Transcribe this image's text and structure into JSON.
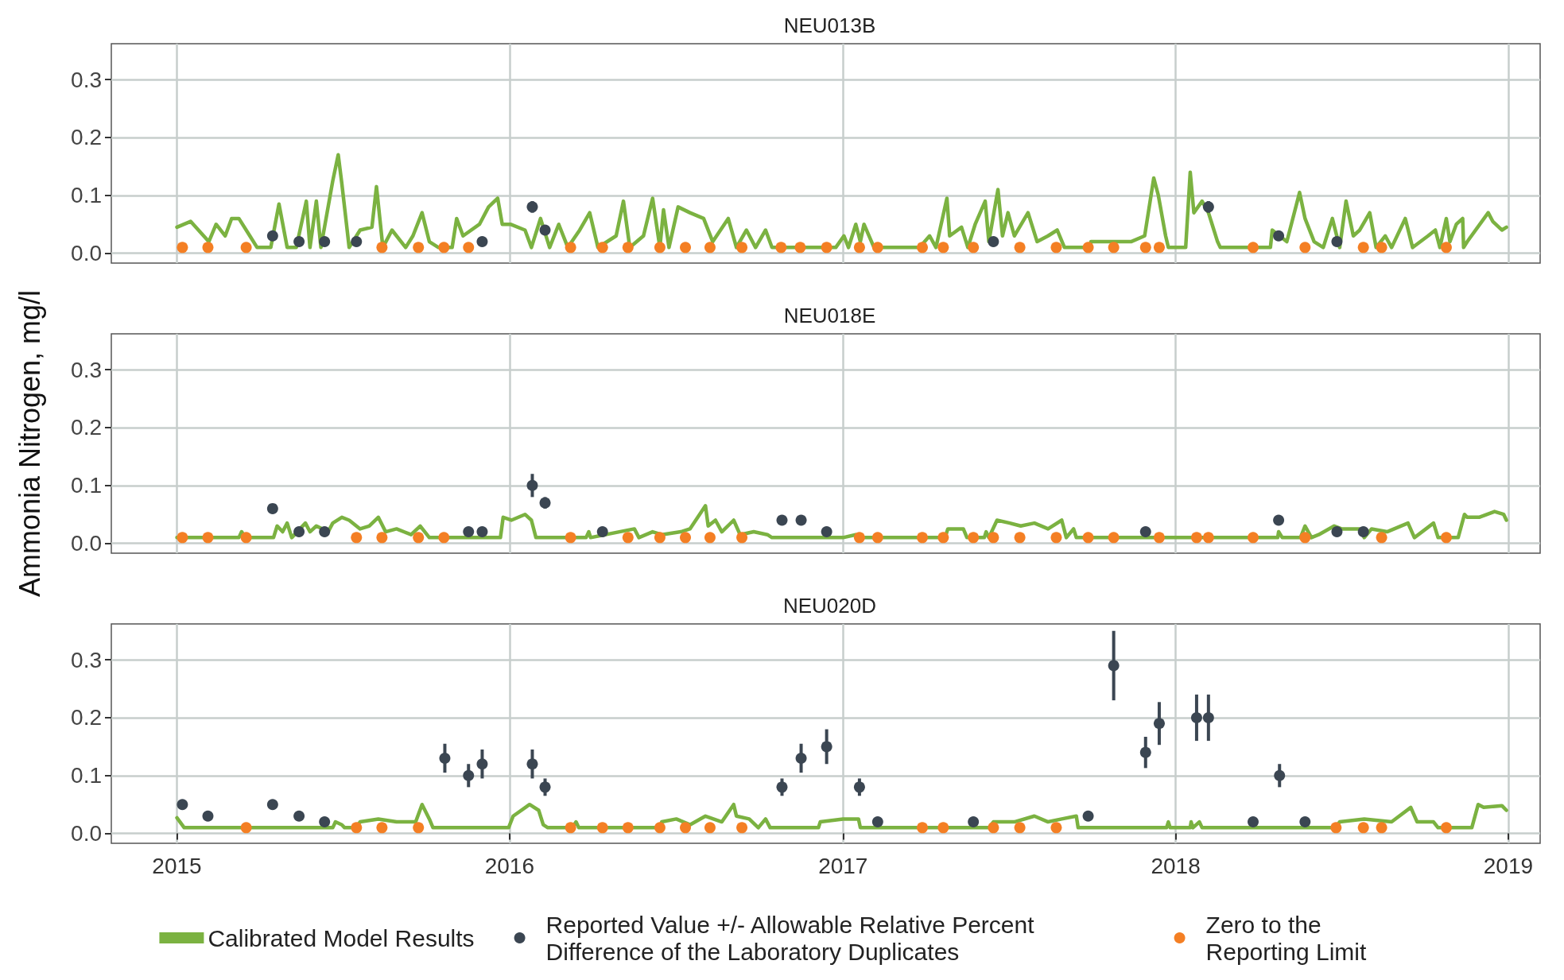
{
  "chart_data": [
    {
      "type": "line",
      "title": "NEU013B",
      "xlim": [
        "2014-10-21",
        "2019-02-05"
      ],
      "xticks": [
        "2015",
        "2016",
        "2017",
        "2018",
        "2019"
      ],
      "ylim": [
        -0.017,
        0.362
      ],
      "yticks": [
        {
          "value": 0,
          "label": "0.0"
        },
        {
          "value": 0.1,
          "label": "0.1"
        },
        {
          "value": 0.2,
          "label": "0.2"
        },
        {
          "value": 0.3,
          "label": "0.3"
        }
      ],
      "grid": true,
      "tick_labels": "y",
      "series": [
        {
          "type": "line",
          "color": "#7bb241",
          "marker": "none",
          "x": [
            "2015-01-01",
            "2015-01-16",
            "2015-02-05",
            "2015-02-13",
            "2015-02-23",
            "2015-03-02",
            "2015-03-10",
            "2015-03-22",
            "2015-03-30",
            "2015-04-14",
            "2015-04-23",
            "2015-05-02",
            "2015-05-12",
            "2015-05-23",
            "2015-05-27",
            "2015-06-03",
            "2015-06-08",
            "2015-06-21",
            "2015-06-27",
            "2015-07-01",
            "2015-07-09",
            "2015-07-21",
            "2015-08-03",
            "2015-08-08",
            "2015-08-15",
            "2015-08-25",
            "2015-09-09",
            "2015-09-17",
            "2015-09-27",
            "2015-10-05",
            "2015-10-15",
            "2015-10-30",
            "2015-11-04",
            "2015-11-11",
            "2015-11-29",
            "2015-12-09",
            "2015-12-19",
            "2015-12-24",
            "2016-01-02",
            "2016-01-18",
            "2016-01-25",
            "2016-02-04",
            "2016-02-14",
            "2016-02-24",
            "2016-03-05",
            "2016-03-18",
            "2016-03-29",
            "2016-04-07",
            "2016-04-27",
            "2016-05-05",
            "2016-05-12",
            "2016-05-27",
            "2016-06-06",
            "2016-06-14",
            "2016-06-18",
            "2016-06-24",
            "2016-07-04",
            "2016-07-17",
            "2016-08-01",
            "2016-08-11",
            "2016-08-28",
            "2016-09-06",
            "2016-09-17",
            "2016-09-27",
            "2016-10-08",
            "2016-10-15",
            "2016-12-24",
            "2017-01-02",
            "2017-01-07",
            "2017-01-15",
            "2017-01-20",
            "2017-01-24",
            "2017-02-04",
            "2017-03-26",
            "2017-04-06",
            "2017-04-13",
            "2017-04-25",
            "2017-04-28",
            "2017-05-11",
            "2017-05-18",
            "2017-05-26",
            "2017-06-06",
            "2017-06-10",
            "2017-06-20",
            "2017-06-25",
            "2017-07-01",
            "2017-07-08",
            "2017-07-23",
            "2017-08-02",
            "2017-08-14",
            "2017-08-24",
            "2017-09-01",
            "2017-09-29",
            "2017-09-30",
            "2017-10-24",
            "2017-11-13",
            "2017-11-28",
            "2017-12-08",
            "2017-12-13",
            "2017-12-21",
            "2017-12-24",
            "2018-01-12",
            "2018-01-17",
            "2018-01-21",
            "2018-01-30",
            "2018-02-06",
            "2018-02-16",
            "2018-02-19",
            "2018-04-15",
            "2018-04-17",
            "2018-05-03",
            "2018-05-17",
            "2018-05-23",
            "2018-06-02",
            "2018-06-12",
            "2018-06-22",
            "2018-06-30",
            "2018-07-07",
            "2018-07-15",
            "2018-07-22",
            "2018-08-02",
            "2018-08-09",
            "2018-08-19",
            "2018-08-26",
            "2018-09-10",
            "2018-09-18",
            "2018-10-05",
            "2018-10-13",
            "2018-10-18",
            "2018-10-25",
            "2018-10-29",
            "2018-11-05",
            "2018-11-12",
            "2018-11-13",
            "2018-11-17",
            "2018-12-10",
            "2018-12-15",
            "2018-12-25",
            "2018-12-30"
          ],
          "values": [
            0.045,
            0.055,
            0.02,
            0.05,
            0.03,
            0.06,
            0.06,
            0.03,
            0.01,
            0.01,
            0.085,
            0.01,
            0.01,
            0.09,
            0.01,
            0.09,
            0.01,
            0.125,
            0.17,
            0.12,
            0.01,
            0.04,
            0.045,
            0.115,
            0.01,
            0.04,
            0.01,
            0.03,
            0.07,
            0.02,
            0.01,
            0.01,
            0.06,
            0.03,
            0.05,
            0.08,
            0.095,
            0.05,
            0.05,
            0.04,
            0.01,
            0.06,
            0.01,
            0.05,
            0.01,
            0.04,
            0.07,
            0.01,
            0.03,
            0.09,
            0.01,
            0.03,
            0.095,
            0.01,
            0.075,
            0.01,
            0.08,
            0.07,
            0.06,
            0.02,
            0.06,
            0.01,
            0.04,
            0.01,
            0.04,
            0.01,
            0.01,
            0.03,
            0.01,
            0.05,
            0.02,
            0.05,
            0.01,
            0.01,
            0.03,
            0.01,
            0.095,
            0.03,
            0.045,
            0.01,
            0.05,
            0.09,
            0.02,
            0.11,
            0.03,
            0.07,
            0.03,
            0.07,
            0.02,
            0.03,
            0.04,
            0.01,
            0.01,
            0.02,
            0.02,
            0.02,
            0.03,
            0.13,
            0.1,
            0.03,
            0.01,
            0.01,
            0.14,
            0.07,
            0.09,
            0.07,
            0.02,
            0.01,
            0.01,
            0.04,
            0.02,
            0.105,
            0.06,
            0.02,
            0.01,
            0.06,
            0.01,
            0.09,
            0.03,
            0.04,
            0.07,
            0.01,
            0.03,
            0.01,
            0.06,
            0.01,
            0.03,
            0.04,
            0.01,
            0.06,
            0.02,
            0.05,
            0.06,
            0.01,
            0.02,
            0.07,
            0.055,
            0.04,
            0.045
          ]
        },
        {
          "type": "scatter",
          "color": "#3b4652",
          "marker": "circle",
          "x": [
            "2015-04-16",
            "2015-05-15",
            "2015-06-12",
            "2015-07-17",
            "2015-12-02",
            "2016-01-26",
            "2016-02-09",
            "2017-06-15",
            "2018-02-06",
            "2018-04-24",
            "2018-06-27"
          ],
          "values": [
            0.03,
            0.02,
            0.02,
            0.02,
            0.02,
            0.08,
            0.04,
            0.02,
            0.08,
            0.03,
            0.02
          ],
          "errors": [
            null,
            null,
            null,
            null,
            null,
            0.01,
            null,
            null,
            0.01,
            null,
            null
          ]
        },
        {
          "type": "scatter",
          "color": "#f47f24",
          "marker": "circle",
          "x": [
            "2015-01-07",
            "2015-02-04",
            "2015-03-18",
            "2015-08-14",
            "2015-09-23",
            "2015-10-21",
            "2015-11-17",
            "2016-03-08",
            "2016-04-12",
            "2016-05-10",
            "2016-06-14",
            "2016-07-12",
            "2016-08-08",
            "2016-09-12",
            "2016-10-25",
            "2016-11-15",
            "2016-12-14",
            "2017-01-19",
            "2017-02-08",
            "2017-03-29",
            "2017-04-21",
            "2017-05-24",
            "2017-07-14",
            "2017-08-23",
            "2017-09-27",
            "2017-10-25",
            "2017-11-29",
            "2017-12-14",
            "2018-03-27",
            "2018-05-23",
            "2018-07-26",
            "2018-08-15",
            "2018-10-25"
          ],
          "values": [
            0.01,
            0.01,
            0.01,
            0.01,
            0.01,
            0.01,
            0.01,
            0.01,
            0.01,
            0.01,
            0.01,
            0.01,
            0.01,
            0.01,
            0.01,
            0.01,
            0.01,
            0.01,
            0.01,
            0.01,
            0.01,
            0.01,
            0.01,
            0.01,
            0.01,
            0.01,
            0.01,
            0.01,
            0.01,
            0.01,
            0.01,
            0.01,
            0.01
          ]
        }
      ]
    },
    {
      "type": "line",
      "title": "NEU018E",
      "ylabel": "Ammonia Nitrogen, mg/l",
      "xlim": [
        "2014-10-21",
        "2019-02-05"
      ],
      "xticks": [
        "2015",
        "2016",
        "2017",
        "2018",
        "2019"
      ],
      "ylim": [
        -0.017,
        0.362
      ],
      "yticks": [
        {
          "value": 0,
          "label": "0.0"
        },
        {
          "value": 0.1,
          "label": "0.1"
        },
        {
          "value": 0.2,
          "label": "0.2"
        },
        {
          "value": 0.3,
          "label": "0.3"
        }
      ],
      "grid": true,
      "tick_labels": "y",
      "series": [
        {
          "type": "line",
          "color": "#7bb241",
          "marker": "none",
          "x": [
            "2015-01-01",
            "2015-03-10",
            "2015-03-13",
            "2015-03-17",
            "2015-04-17",
            "2015-04-21",
            "2015-04-27",
            "2015-05-02",
            "2015-05-07",
            "2015-05-22",
            "2015-05-27",
            "2015-06-03",
            "2015-06-16",
            "2015-06-21",
            "2015-07-01",
            "2015-07-09",
            "2015-07-21",
            "2015-07-31",
            "2015-08-10",
            "2015-08-18",
            "2015-08-30",
            "2015-09-15",
            "2015-09-25",
            "2015-10-05",
            "2015-12-22",
            "2015-12-25",
            "2016-01-03",
            "2016-01-18",
            "2016-01-25",
            "2016-01-30",
            "2016-03-25",
            "2016-03-28",
            "2016-03-30",
            "2016-05-17",
            "2016-05-22",
            "2016-06-06",
            "2016-06-16",
            "2016-07-07",
            "2016-07-17",
            "2016-08-03",
            "2016-08-06",
            "2016-08-14",
            "2016-08-21",
            "2016-09-03",
            "2016-09-10",
            "2016-09-25",
            "2016-10-10",
            "2016-10-15",
            "2017-01-01",
            "2017-01-15",
            "2017-01-20",
            "2017-04-23",
            "2017-04-26",
            "2017-05-13",
            "2017-05-17",
            "2017-06-05",
            "2017-06-07",
            "2017-06-10",
            "2017-06-19",
            "2017-07-03",
            "2017-07-15",
            "2017-07-30",
            "2017-08-14",
            "2017-08-29",
            "2017-09-03",
            "2017-09-11",
            "2017-09-14",
            "2018-04-23",
            "2018-04-24",
            "2018-04-28",
            "2018-05-18",
            "2018-05-23",
            "2018-05-30",
            "2018-06-07",
            "2018-06-24",
            "2018-07-02",
            "2018-07-22",
            "2018-07-27",
            "2018-08-04",
            "2018-08-21",
            "2018-09-13",
            "2018-09-20",
            "2018-10-11",
            "2018-10-16",
            "2018-11-07",
            "2018-11-14",
            "2018-11-17",
            "2018-11-30",
            "2018-12-17",
            "2018-12-27",
            "2018-12-30"
          ],
          "values": [
            0.01,
            0.01,
            0.02,
            0.01,
            0.01,
            0.03,
            0.02,
            0.035,
            0.01,
            0.035,
            0.02,
            0.03,
            0.02,
            0.035,
            0.045,
            0.04,
            0.025,
            0.03,
            0.045,
            0.02,
            0.025,
            0.015,
            0.03,
            0.01,
            0.01,
            0.045,
            0.04,
            0.05,
            0.04,
            0.01,
            0.01,
            0.02,
            0.01,
            0.025,
            0.01,
            0.02,
            0.015,
            0.02,
            0.025,
            0.065,
            0.03,
            0.04,
            0.02,
            0.04,
            0.015,
            0.02,
            0.015,
            0.01,
            0.01,
            0.015,
            0.01,
            0.01,
            0.025,
            0.025,
            0.01,
            0.01,
            0.02,
            0.01,
            0.04,
            0.035,
            0.03,
            0.035,
            0.025,
            0.04,
            0.01,
            0.025,
            0.01,
            0.01,
            0.02,
            0.01,
            0.01,
            0.03,
            0.01,
            0.015,
            0.03,
            0.025,
            0.025,
            0.01,
            0.025,
            0.02,
            0.035,
            0.01,
            0.035,
            0.01,
            0.01,
            0.05,
            0.045,
            0.045,
            0.055,
            0.05,
            0.04
          ]
        },
        {
          "type": "scatter",
          "color": "#3b4652",
          "marker": "circle",
          "x": [
            "2015-04-16",
            "2015-05-15",
            "2015-06-12",
            "2015-11-17",
            "2015-12-02",
            "2016-01-26",
            "2016-02-09",
            "2016-04-12",
            "2016-10-26",
            "2016-11-16",
            "2016-12-14",
            "2017-11-29",
            "2018-04-24",
            "2018-06-27",
            "2018-07-26"
          ],
          "values": [
            0.06,
            0.02,
            0.02,
            0.02,
            0.02,
            0.1,
            0.07,
            0.02,
            0.04,
            0.04,
            0.02,
            0.02,
            0.04,
            0.02,
            0.02
          ],
          "errors": [
            null,
            null,
            null,
            null,
            null,
            0.02,
            0.01,
            null,
            null,
            null,
            null,
            null,
            null,
            null,
            null
          ]
        },
        {
          "type": "scatter",
          "color": "#f47f24",
          "marker": "circle",
          "x": [
            "2015-01-07",
            "2015-02-04",
            "2015-03-18",
            "2015-07-17",
            "2015-08-14",
            "2015-09-23",
            "2015-10-21",
            "2016-03-08",
            "2016-05-10",
            "2016-06-14",
            "2016-07-12",
            "2016-08-08",
            "2016-09-12",
            "2017-01-19",
            "2017-02-08",
            "2017-03-29",
            "2017-04-21",
            "2017-05-24",
            "2017-06-15",
            "2017-07-14",
            "2017-08-23",
            "2017-09-27",
            "2017-10-25",
            "2017-12-14",
            "2018-01-24",
            "2018-02-06",
            "2018-03-27",
            "2018-05-23",
            "2018-08-15",
            "2018-10-25"
          ],
          "values": [
            0.01,
            0.01,
            0.01,
            0.01,
            0.01,
            0.01,
            0.01,
            0.01,
            0.01,
            0.01,
            0.01,
            0.01,
            0.01,
            0.01,
            0.01,
            0.01,
            0.01,
            0.01,
            0.01,
            0.01,
            0.01,
            0.01,
            0.01,
            0.01,
            0.01,
            0.01,
            0.01,
            0.01,
            0.01,
            0.01
          ]
        }
      ]
    },
    {
      "type": "line",
      "title": "NEU020D",
      "xlim": [
        "2014-10-21",
        "2019-02-05"
      ],
      "xticks": [
        "2015",
        "2016",
        "2017",
        "2018",
        "2019"
      ],
      "ylim": [
        -0.017,
        0.362
      ],
      "yticks": [
        {
          "value": 0,
          "label": "0.0"
        },
        {
          "value": 0.1,
          "label": "0.1"
        },
        {
          "value": 0.2,
          "label": "0.2"
        },
        {
          "value": 0.3,
          "label": "0.3"
        }
      ],
      "grid": true,
      "legend": "bottom",
      "series": [
        {
          "type": "line",
          "name": "Calibrated Model Results",
          "color": "#7bb241",
          "marker": "none",
          "x": [
            "2015-01-01",
            "2015-01-09",
            "2015-06-21",
            "2015-06-24",
            "2015-07-01",
            "2015-07-04",
            "2015-07-16",
            "2015-07-21",
            "2015-08-10",
            "2015-08-30",
            "2015-09-20",
            "2015-09-27",
            "2015-10-05",
            "2015-10-09",
            "2015-12-31",
            "2016-01-05",
            "2016-01-23",
            "2016-02-02",
            "2016-02-07",
            "2016-02-12",
            "2016-03-10",
            "2016-03-14",
            "2016-03-17",
            "2016-06-14",
            "2016-06-16",
            "2016-07-02",
            "2016-07-17",
            "2016-08-03",
            "2016-08-21",
            "2016-09-03",
            "2016-09-06",
            "2016-09-20",
            "2016-09-30",
            "2016-10-08",
            "2016-10-13",
            "2016-12-05",
            "2016-12-07",
            "2017-01-01",
            "2017-01-18",
            "2017-01-20",
            "2017-06-10",
            "2017-06-15",
            "2017-07-08",
            "2017-07-30",
            "2017-08-14",
            "2017-08-29",
            "2017-09-14",
            "2017-09-16",
            "2017-12-22",
            "2017-12-24",
            "2017-12-26",
            "2018-01-17",
            "2018-01-18",
            "2018-01-20",
            "2018-01-27",
            "2018-01-30",
            "2018-06-25",
            "2018-06-30",
            "2018-07-27",
            "2018-08-26",
            "2018-09-16",
            "2018-09-23",
            "2018-10-11",
            "2018-10-16",
            "2018-11-22",
            "2018-11-29",
            "2018-12-05",
            "2018-12-25",
            "2018-12-30"
          ],
          "values": [
            0.027,
            0.01,
            0.01,
            0.02,
            0.015,
            0.01,
            0.01,
            0.02,
            0.025,
            0.02,
            0.02,
            0.05,
            0.025,
            0.01,
            0.01,
            0.03,
            0.05,
            0.04,
            0.015,
            0.01,
            0.01,
            0.02,
            0.01,
            0.01,
            0.02,
            0.025,
            0.015,
            0.03,
            0.02,
            0.05,
            0.03,
            0.025,
            0.01,
            0.025,
            0.01,
            0.01,
            0.02,
            0.025,
            0.025,
            0.01,
            0.01,
            0.02,
            0.02,
            0.03,
            0.02,
            0.025,
            0.03,
            0.01,
            0.01,
            0.02,
            0.01,
            0.01,
            0.02,
            0.01,
            0.02,
            0.01,
            0.01,
            0.02,
            0.025,
            0.02,
            0.045,
            0.02,
            0.02,
            0.01,
            0.01,
            0.05,
            0.045,
            0.048,
            0.04
          ]
        },
        {
          "type": "scatter",
          "name": "Reported Value +/- Allowable Relative Percent Difference of the Laboratory Duplicates",
          "color": "#3b4652",
          "marker": "circle",
          "x": [
            "2015-01-07",
            "2015-02-04",
            "2015-04-16",
            "2015-05-15",
            "2015-06-12",
            "2015-10-22",
            "2015-11-17",
            "2015-12-02",
            "2016-01-26",
            "2016-02-09",
            "2016-10-26",
            "2016-11-16",
            "2016-12-14",
            "2017-01-19",
            "2017-02-08",
            "2017-05-24",
            "2017-09-27",
            "2017-10-25",
            "2017-11-29",
            "2017-12-14",
            "2018-01-24",
            "2018-02-06",
            "2018-03-27",
            "2018-04-25",
            "2018-05-23"
          ],
          "values": [
            0.05,
            0.03,
            0.05,
            0.03,
            0.02,
            0.13,
            0.1,
            0.12,
            0.12,
            0.08,
            0.08,
            0.13,
            0.15,
            0.08,
            0.02,
            0.02,
            0.03,
            0.29,
            0.14,
            0.19,
            0.2,
            0.2,
            0.02,
            0.1,
            0.02
          ],
          "errors": [
            null,
            null,
            null,
            null,
            null,
            0.025,
            0.02,
            0.025,
            0.025,
            0.015,
            0.015,
            0.025,
            0.03,
            0.015,
            null,
            null,
            null,
            0.06,
            0.027,
            0.037,
            0.04,
            0.04,
            null,
            0.02,
            null
          ]
        },
        {
          "type": "scatter",
          "name": "Zero to the Reporting Limit",
          "color": "#f47f24",
          "marker": "circle",
          "x": [
            "2015-03-18",
            "2015-07-17",
            "2015-08-14",
            "2015-09-23",
            "2016-03-08",
            "2016-04-12",
            "2016-05-10",
            "2016-06-14",
            "2016-07-12",
            "2016-08-08",
            "2016-09-12",
            "2017-03-29",
            "2017-04-21",
            "2017-06-15",
            "2017-07-14",
            "2017-08-23",
            "2018-06-26",
            "2018-07-26",
            "2018-08-15",
            "2018-10-25"
          ],
          "values": [
            0.01,
            0.01,
            0.01,
            0.01,
            0.01,
            0.01,
            0.01,
            0.01,
            0.01,
            0.01,
            0.01,
            0.01,
            0.01,
            0.01,
            0.01,
            0.01,
            0.01,
            0.01,
            0.01,
            0.01
          ]
        }
      ]
    }
  ]
}
